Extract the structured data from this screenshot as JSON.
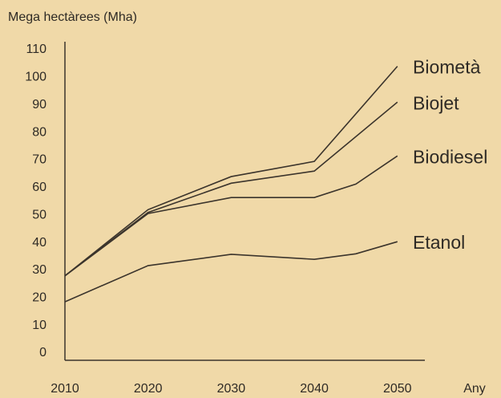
{
  "chart_data": {
    "type": "line",
    "y_axis_label": "Mega hectàrees (Mha)",
    "x_axis_label": "Any",
    "xlim": [
      2010,
      2053.3
    ],
    "xticks": [
      2010,
      2020,
      2030,
      2040,
      2050
    ],
    "ylim": [
      0,
      110
    ],
    "yticks": [
      0,
      10,
      20,
      30,
      40,
      50,
      60,
      70,
      80,
      90,
      100,
      110
    ],
    "grid": false,
    "series": [
      {
        "name": "Biometà",
        "color": "#3b342c",
        "x": [
          2010,
          2020,
          2030,
          2040,
          2050
        ],
        "values": [
          28,
          52,
          64,
          69.5,
          104
        ]
      },
      {
        "name": "Biojet",
        "color": "#3b342c",
        "x": [
          2010,
          2020,
          2030,
          2040,
          2050
        ],
        "values": [
          28,
          51,
          61.6,
          66,
          91
        ]
      },
      {
        "name": "Biodiesel",
        "color": "#3b342c",
        "x": [
          2010,
          2020,
          2030,
          2040,
          2045,
          2050
        ],
        "values": [
          28,
          50.6,
          56.4,
          56.4,
          61.3,
          71.5
        ]
      },
      {
        "name": "Etanol",
        "color": "#3b342c",
        "x": [
          2010,
          2020,
          2030,
          2040,
          2045,
          2050
        ],
        "values": [
          18.6,
          31.7,
          35.8,
          34,
          36,
          40.4
        ]
      }
    ]
  }
}
